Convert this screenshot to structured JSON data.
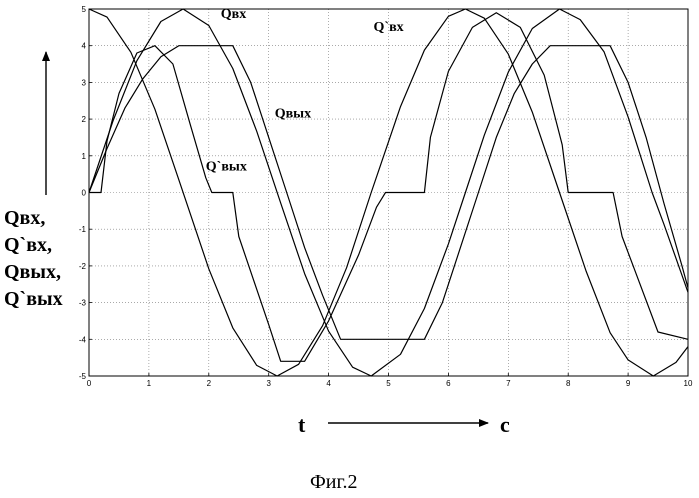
{
  "chart_data": {
    "type": "line",
    "xlim": [
      0,
      10
    ],
    "ylim": [
      -5,
      5
    ],
    "xticks": [
      "0",
      "1",
      "2",
      "3",
      "4",
      "5",
      "6",
      "7",
      "8",
      "9",
      "10"
    ],
    "yticks": [
      "5",
      "4",
      "3",
      "2",
      "1",
      "0",
      "-1",
      "-2",
      "-3",
      "-4",
      "-5"
    ],
    "grid": true,
    "ylabel_lines": [
      "Qвх,",
      "Q`вх,",
      "Qвых,",
      "Q`вых"
    ],
    "xlabel": "t",
    "xunit": "c",
    "series": [
      {
        "name": "Qвх",
        "x": [
          0.0,
          0.4,
          0.8,
          1.2,
          1.571,
          2.0,
          2.4,
          2.8,
          3.2,
          3.6,
          4.0,
          4.4,
          4.712,
          5.2,
          5.6,
          6.0,
          6.283,
          6.6,
          7.0,
          7.4,
          7.854,
          8.2,
          8.6,
          9.0,
          9.4,
          9.6,
          10.0
        ],
        "values": [
          0.0,
          1.95,
          3.59,
          4.66,
          5.0,
          4.55,
          3.38,
          1.67,
          -0.29,
          -2.21,
          -3.78,
          -4.76,
          -5.0,
          -4.41,
          -3.16,
          -1.4,
          0.0,
          1.56,
          3.28,
          4.47,
          5.0,
          4.71,
          3.83,
          2.06,
          0.0,
          -0.87,
          -2.72
        ],
        "label_x": 2.2,
        "label_y": 4.75
      },
      {
        "name": "Q`вх",
        "x": [
          0.0,
          0.3,
          0.7,
          1.1,
          1.5,
          2.0,
          2.4,
          2.8,
          3.141,
          3.5,
          3.9,
          4.3,
          4.712,
          5.2,
          5.6,
          6.0,
          6.283,
          6.6,
          7.0,
          7.4,
          7.854,
          8.3,
          8.7,
          9.0,
          9.42,
          9.8,
          10.0
        ],
        "values": [
          5.0,
          4.78,
          3.82,
          2.27,
          0.35,
          -2.08,
          -3.69,
          -4.71,
          -5.0,
          -4.68,
          -3.63,
          -2.05,
          0.0,
          2.34,
          3.88,
          4.8,
          5.0,
          4.75,
          3.77,
          2.19,
          0.0,
          -2.15,
          -3.82,
          -4.56,
          -5.0,
          -4.63,
          -4.2
        ],
        "label_x": 4.75,
        "label_y": 4.4
      },
      {
        "name": "Qвых",
        "x": [
          0.0,
          0.3,
          0.6,
          0.9,
          1.2,
          1.5,
          2.4,
          2.7,
          3.0,
          3.3,
          3.6,
          3.9,
          4.2,
          5.6,
          5.9,
          6.2,
          6.5,
          6.8,
          7.1,
          7.4,
          7.7,
          8.7,
          9.0,
          9.3,
          9.6,
          9.9,
          10.0
        ],
        "values": [
          0.0,
          1.2,
          2.3,
          3.1,
          3.7,
          4.0,
          4.0,
          3.0,
          1.5,
          0.0,
          -1.5,
          -2.8,
          -4.0,
          -4.0,
          -3.0,
          -1.5,
          0.0,
          1.5,
          2.7,
          3.5,
          4.0,
          4.0,
          3.0,
          1.5,
          -0.3,
          -2.0,
          -2.6
        ],
        "label_x": 3.1,
        "label_y": 2.05
      },
      {
        "name": "Q`вых",
        "x": [
          0.0,
          0.2,
          0.3,
          0.5,
          0.8,
          1.1,
          1.4,
          1.7,
          1.95,
          2.05,
          2.4,
          2.5,
          3.0,
          3.2,
          3.6,
          4.0,
          4.5,
          4.8,
          4.95,
          5.6,
          5.7,
          6.0,
          6.4,
          6.8,
          7.2,
          7.6,
          7.9,
          8.0,
          8.75,
          8.9,
          9.5,
          10.0
        ],
        "values": [
          0.0,
          0.0,
          1.4,
          2.7,
          3.8,
          4.0,
          3.5,
          1.8,
          0.4,
          0.0,
          0.0,
          -1.2,
          -3.6,
          -4.6,
          -4.6,
          -3.5,
          -1.7,
          -0.4,
          0.0,
          0.0,
          1.5,
          3.3,
          4.5,
          4.9,
          4.5,
          3.2,
          1.3,
          0.0,
          0.0,
          -1.2,
          -3.8,
          -4.0
        ],
        "label_x": 1.95,
        "label_y": 0.6
      }
    ]
  },
  "caption": "Фиг.2"
}
